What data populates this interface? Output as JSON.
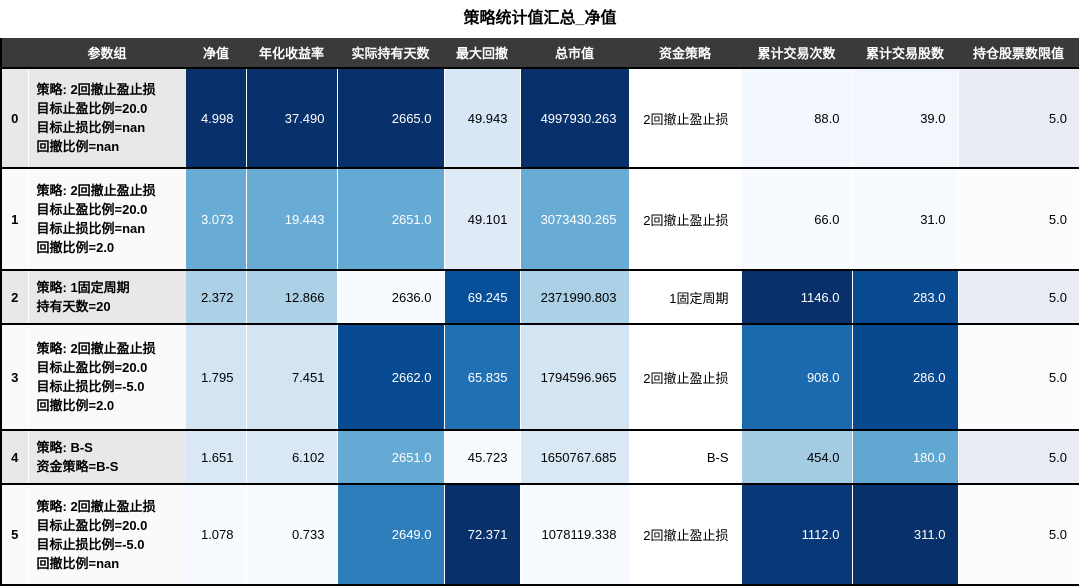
{
  "title": "策略统计值汇总_净值",
  "colors": {
    "header_bg": "#3a3a3a",
    "border": "#000000",
    "zebra_even": "#e8e8e8",
    "zebra_odd": "#fafafa",
    "heatmap_darkest": "#08306b",
    "heatmap_lightest": "#f7fbff"
  },
  "table": {
    "index_header": "",
    "columns": [
      "参数组",
      "净值",
      "年化收益率",
      "实际持有天数",
      "最大回撤",
      "总市值",
      "资金策略",
      "累计交易次数",
      "累计交易股数",
      "持仓股票数限值"
    ],
    "column_keys": [
      "net-value",
      "annualized-return",
      "holding-days",
      "max-drawdown",
      "total-market-value",
      "capital-strategy",
      "trade-count",
      "trade-shares",
      "position-limit"
    ],
    "rows": [
      {
        "index": "0",
        "param_lines": [
          "策略: 2回撤止盈止损",
          "目标止盈比例=20.0",
          "目标止损比例=nan",
          "回撤比例=nan"
        ],
        "cells": [
          {
            "t": "4.998",
            "bg": "#08306b",
            "fg": "#ffffff"
          },
          {
            "t": "37.490",
            "bg": "#08306b",
            "fg": "#ffffff"
          },
          {
            "t": "2665.0",
            "bg": "#08306b",
            "fg": "#ffffff"
          },
          {
            "t": "49.943",
            "bg": "#d8e7f5",
            "fg": "#000000"
          },
          {
            "t": "4997930.263",
            "bg": "#08306b",
            "fg": "#ffffff"
          },
          {
            "t": "2回撤止盈止损",
            "bg": "#ffffff",
            "fg": "#000000"
          },
          {
            "t": "88.0",
            "bg": "#f3f8fe",
            "fg": "#000000"
          },
          {
            "t": "39.0",
            "bg": "#f1f7fd",
            "fg": "#000000"
          },
          {
            "t": "5.0",
            "bg": "#e9edf3",
            "fg": "#000000"
          }
        ]
      },
      {
        "index": "1",
        "param_lines": [
          "策略: 2回撤止盈止损",
          "目标止盈比例=20.0",
          "目标止损比例=nan",
          "回撤比例=2.0"
        ],
        "cells": [
          {
            "t": "3.073",
            "bg": "#68acd5",
            "fg": "#ffffff"
          },
          {
            "t": "19.443",
            "bg": "#68acd5",
            "fg": "#ffffff"
          },
          {
            "t": "2651.0",
            "bg": "#65aad4",
            "fg": "#ffffff"
          },
          {
            "t": "49.101",
            "bg": "#deebf7",
            "fg": "#000000"
          },
          {
            "t": "3073430.265",
            "bg": "#68acd5",
            "fg": "#ffffff"
          },
          {
            "t": "2回撤止盈止损",
            "bg": "#ffffff",
            "fg": "#000000"
          },
          {
            "t": "66.0",
            "bg": "#f7fbff",
            "fg": "#000000"
          },
          {
            "t": "31.0",
            "bg": "#f7fbff",
            "fg": "#000000"
          },
          {
            "t": "5.0",
            "bg": "#fbfcfe",
            "fg": "#000000"
          }
        ]
      },
      {
        "index": "2",
        "param_lines": [
          "策略: 1固定周期",
          "持有天数=20"
        ],
        "cells": [
          {
            "t": "2.372",
            "bg": "#acd0e6",
            "fg": "#000000"
          },
          {
            "t": "12.866",
            "bg": "#acd0e6",
            "fg": "#000000"
          },
          {
            "t": "2636.0",
            "bg": "#f7fbff",
            "fg": "#000000"
          },
          {
            "t": "69.245",
            "bg": "#084f99",
            "fg": "#ffffff"
          },
          {
            "t": "2371990.803",
            "bg": "#acd0e6",
            "fg": "#000000"
          },
          {
            "t": "1固定周期",
            "bg": "#ffffff",
            "fg": "#000000"
          },
          {
            "t": "1146.0",
            "bg": "#08306b",
            "fg": "#ffffff"
          },
          {
            "t": "283.0",
            "bg": "#084a92",
            "fg": "#ffffff"
          },
          {
            "t": "5.0",
            "bg": "#e9edf3",
            "fg": "#000000"
          }
        ]
      },
      {
        "index": "3",
        "param_lines": [
          "策略: 2回撤止盈止损",
          "目标止盈比例=20.0",
          "目标止损比例=-5.0",
          "回撤比例=2.0"
        ],
        "cells": [
          {
            "t": "1.795",
            "bg": "#d3e4f3",
            "fg": "#000000"
          },
          {
            "t": "7.451",
            "bg": "#d3e4f3",
            "fg": "#000000"
          },
          {
            "t": "2662.0",
            "bg": "#084b93",
            "fg": "#ffffff"
          },
          {
            "t": "65.835",
            "bg": "#2070b4",
            "fg": "#ffffff"
          },
          {
            "t": "1794596.965",
            "bg": "#d3e4f3",
            "fg": "#000000"
          },
          {
            "t": "2回撤止盈止损",
            "bg": "#ffffff",
            "fg": "#000000"
          },
          {
            "t": "908.0",
            "bg": "#1b69af",
            "fg": "#ffffff"
          },
          {
            "t": "286.0",
            "bg": "#08488e",
            "fg": "#ffffff"
          },
          {
            "t": "5.0",
            "bg": "#fbfcfe",
            "fg": "#000000"
          }
        ]
      },
      {
        "index": "4",
        "param_lines": [
          "策略: B-S",
          "资金策略=B-S"
        ],
        "cells": [
          {
            "t": "1.651",
            "bg": "#dae8f6",
            "fg": "#000000"
          },
          {
            "t": "6.102",
            "bg": "#dae8f6",
            "fg": "#000000"
          },
          {
            "t": "2651.0",
            "bg": "#65aad4",
            "fg": "#ffffff"
          },
          {
            "t": "45.723",
            "bg": "#f7fbff",
            "fg": "#000000"
          },
          {
            "t": "1650767.685",
            "bg": "#dae8f6",
            "fg": "#000000"
          },
          {
            "t": "B-S",
            "bg": "#ffffff",
            "fg": "#000000"
          },
          {
            "t": "454.0",
            "bg": "#a3cce3",
            "fg": "#000000"
          },
          {
            "t": "180.0",
            "bg": "#60a7d2",
            "fg": "#ffffff"
          },
          {
            "t": "5.0",
            "bg": "#e9edf3",
            "fg": "#000000"
          }
        ]
      },
      {
        "index": "5",
        "param_lines": [
          "策略: 2回撤止盈止损",
          "目标止盈比例=20.0",
          "目标止损比例=-5.0",
          "回撤比例=nan"
        ],
        "cells": [
          {
            "t": "1.078",
            "bg": "#f7fbff",
            "fg": "#000000"
          },
          {
            "t": "0.733",
            "bg": "#f7fbff",
            "fg": "#000000"
          },
          {
            "t": "2649.0",
            "bg": "#2e7ebc",
            "fg": "#ffffff"
          },
          {
            "t": "72.371",
            "bg": "#08306b",
            "fg": "#ffffff"
          },
          {
            "t": "1078119.338",
            "bg": "#f7fbff",
            "fg": "#000000"
          },
          {
            "t": "2回撤止盈止损",
            "bg": "#ffffff",
            "fg": "#000000"
          },
          {
            "t": "1112.0",
            "bg": "#083877",
            "fg": "#ffffff"
          },
          {
            "t": "311.0",
            "bg": "#08306b",
            "fg": "#ffffff"
          },
          {
            "t": "5.0",
            "bg": "#fbfcfe",
            "fg": "#000000"
          }
        ]
      }
    ]
  },
  "chart_data": {
    "type": "table",
    "title": "策略统计值汇总_净值",
    "colormap": "Blues",
    "index": [
      0,
      1,
      2,
      3,
      4,
      5
    ],
    "columns": [
      "参数组",
      "净值",
      "年化收益率",
      "实际持有天数",
      "最大回撤",
      "总市值",
      "资金策略",
      "累计交易次数",
      "累计交易股数",
      "持仓股票数限值"
    ],
    "rows": [
      [
        "策略: 2回撤止盈止损\n目标止盈比例=20.0\n目标止损比例=nan\n回撤比例=nan",
        4.998,
        37.49,
        2665.0,
        49.943,
        4997930.263,
        "2回撤止盈止损",
        88.0,
        39.0,
        5.0
      ],
      [
        "策略: 2回撤止盈止损\n目标止盈比例=20.0\n目标止损比例=nan\n回撤比例=2.0",
        3.073,
        19.443,
        2651.0,
        49.101,
        3073430.265,
        "2回撤止盈止损",
        66.0,
        31.0,
        5.0
      ],
      [
        "策略: 1固定周期\n持有天数=20",
        2.372,
        12.866,
        2636.0,
        69.245,
        2371990.803,
        "1固定周期",
        1146.0,
        283.0,
        5.0
      ],
      [
        "策略: 2回撤止盈止损\n目标止盈比例=20.0\n目标止损比例=-5.0\n回撤比例=2.0",
        1.795,
        7.451,
        2662.0,
        65.835,
        1794596.965,
        "2回撤止盈止损",
        908.0,
        286.0,
        5.0
      ],
      [
        "策略: B-S\n资金策略=B-S",
        1.651,
        6.102,
        2651.0,
        45.723,
        1650767.685,
        "B-S",
        454.0,
        180.0,
        5.0
      ],
      [
        "策略: 2回撤止盈止损\n目标止盈比例=20.0\n目标止损比例=-5.0\n回撤比例=nan",
        1.078,
        0.733,
        2649.0,
        72.371,
        1078119.338,
        "2回撤止盈止损",
        1112.0,
        311.0,
        5.0
      ]
    ]
  }
}
